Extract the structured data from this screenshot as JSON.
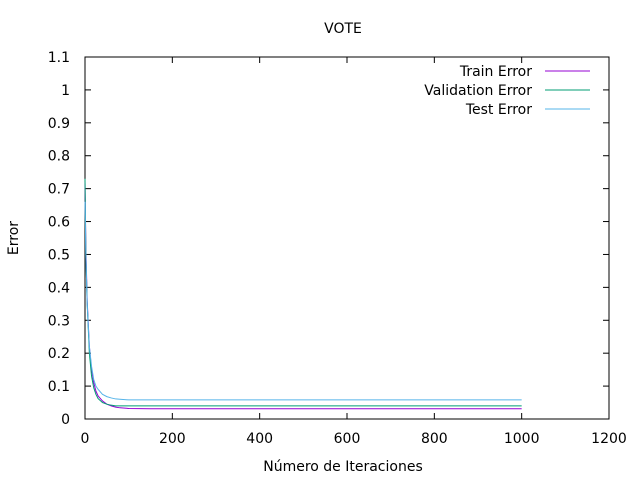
{
  "chart_data": {
    "type": "line",
    "title": "VOTE",
    "xlabel": "Número de Iteraciones",
    "ylabel": "Error",
    "xlim": [
      0,
      1200
    ],
    "ylim": [
      0,
      1.1
    ],
    "xticks": [
      "0",
      "200",
      "400",
      "600",
      "800",
      "1000",
      "1200"
    ],
    "yticks": [
      "0",
      "0.1",
      "0.2",
      "0.3",
      "0.4",
      "0.5",
      "0.6",
      "0.7",
      "0.8",
      "0.9",
      "1",
      "1.1"
    ],
    "grid": false,
    "legend_position": "top-right",
    "series": [
      {
        "name": "Train Error",
        "color": "#9400d3",
        "points": [
          [
            0,
            0.72
          ],
          [
            2,
            0.52
          ],
          [
            5,
            0.36
          ],
          [
            10,
            0.22
          ],
          [
            15,
            0.15
          ],
          [
            20,
            0.11
          ],
          [
            25,
            0.085
          ],
          [
            30,
            0.07
          ],
          [
            40,
            0.055
          ],
          [
            50,
            0.045
          ],
          [
            60,
            0.04
          ],
          [
            70,
            0.036
          ],
          [
            80,
            0.034
          ],
          [
            100,
            0.032
          ],
          [
            150,
            0.031
          ],
          [
            200,
            0.031
          ],
          [
            400,
            0.031
          ],
          [
            600,
            0.031
          ],
          [
            800,
            0.031
          ],
          [
            1000,
            0.031
          ]
        ]
      },
      {
        "name": "Validation Error",
        "color": "#009e73",
        "points": [
          [
            0,
            0.73
          ],
          [
            2,
            0.5
          ],
          [
            5,
            0.35
          ],
          [
            10,
            0.2
          ],
          [
            15,
            0.13
          ],
          [
            20,
            0.095
          ],
          [
            25,
            0.075
          ],
          [
            30,
            0.062
          ],
          [
            40,
            0.05
          ],
          [
            50,
            0.045
          ],
          [
            60,
            0.042
          ],
          [
            70,
            0.04
          ],
          [
            80,
            0.04
          ],
          [
            100,
            0.04
          ],
          [
            150,
            0.04
          ],
          [
            200,
            0.04
          ],
          [
            400,
            0.04
          ],
          [
            600,
            0.04
          ],
          [
            800,
            0.04
          ],
          [
            1000,
            0.04
          ]
        ]
      },
      {
        "name": "Test Error",
        "color": "#56b4e9",
        "points": [
          [
            0,
            0.66
          ],
          [
            2,
            0.5
          ],
          [
            5,
            0.35
          ],
          [
            10,
            0.22
          ],
          [
            15,
            0.16
          ],
          [
            20,
            0.12
          ],
          [
            25,
            0.1
          ],
          [
            30,
            0.09
          ],
          [
            40,
            0.075
          ],
          [
            50,
            0.068
          ],
          [
            60,
            0.064
          ],
          [
            70,
            0.061
          ],
          [
            80,
            0.06
          ],
          [
            100,
            0.058
          ],
          [
            150,
            0.058
          ],
          [
            200,
            0.058
          ],
          [
            400,
            0.058
          ],
          [
            600,
            0.058
          ],
          [
            800,
            0.058
          ],
          [
            1000,
            0.058
          ]
        ]
      }
    ]
  }
}
